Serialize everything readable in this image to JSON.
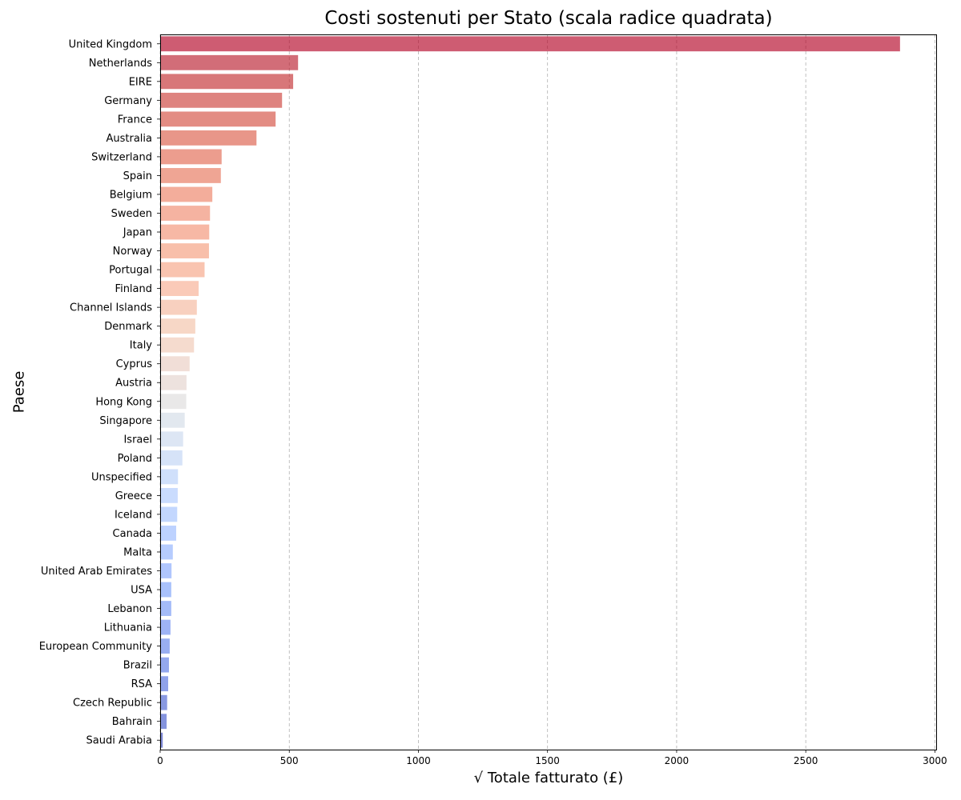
{
  "chart_data": {
    "type": "bar",
    "orientation": "horizontal",
    "title": "Costi sostenuti per Stato (scala radice quadrata)",
    "xlabel": "√ Totale fatturato (£)",
    "ylabel": "Paese",
    "xlim": [
      0,
      3005
    ],
    "xticks": [
      0,
      500,
      1000,
      1500,
      2000,
      2500,
      3000
    ],
    "grid": "x-dashed",
    "palette": "coolwarm (reversed: red to blue)",
    "categories": [
      "United Kingdom",
      "Netherlands",
      "EIRE",
      "Germany",
      "France",
      "Australia",
      "Switzerland",
      "Spain",
      "Belgium",
      "Sweden",
      "Japan",
      "Norway",
      "Portugal",
      "Finland",
      "Channel Islands",
      "Denmark",
      "Italy",
      "Cyprus",
      "Austria",
      "Hong Kong",
      "Singapore",
      "Israel",
      "Poland",
      "Unspecified",
      "Greece",
      "Iceland",
      "Canada",
      "Malta",
      "United Arab Emirates",
      "USA",
      "Lebanon",
      "Lithuania",
      "European Community",
      "Brazil",
      "RSA",
      "Czech Republic",
      "Bahrain",
      "Saudi Arabia"
    ],
    "values": [
      2865,
      534,
      515,
      472,
      447,
      373,
      238,
      235,
      202,
      193,
      190,
      189,
      172,
      149,
      142,
      136,
      131,
      114,
      102,
      101,
      95,
      89,
      86,
      69,
      68,
      66,
      62,
      49,
      44,
      43,
      43,
      40,
      37,
      34,
      31,
      27,
      25,
      10
    ],
    "colors": [
      "#b40426",
      "#ba1f2f",
      "#c32e31",
      "#cc403a",
      "#d44e41",
      "#db5d4a",
      "#e26952",
      "#e7755b",
      "#ec8165",
      "#f08b6e",
      "#f29274",
      "#f59c7d",
      "#f6a586",
      "#f7ae92",
      "#f5b79c",
      "#f2c1a8",
      "#efc8b4",
      "#e9cdc1",
      "#e3d3cd",
      "#dddcdc",
      "#d3dbe7",
      "#cbd8ee",
      "#c0d4f5",
      "#b7cff9",
      "#adc9fd",
      "#a3c2fe",
      "#99baff",
      "#8fb1fe",
      "#85a8fc",
      "#7b9ff9",
      "#7396f5",
      "#6a8bef",
      "#6282ea",
      "#5b7ae5",
      "#5470de",
      "#4a63d3",
      "#445acc",
      "#3b4cc0"
    ]
  }
}
